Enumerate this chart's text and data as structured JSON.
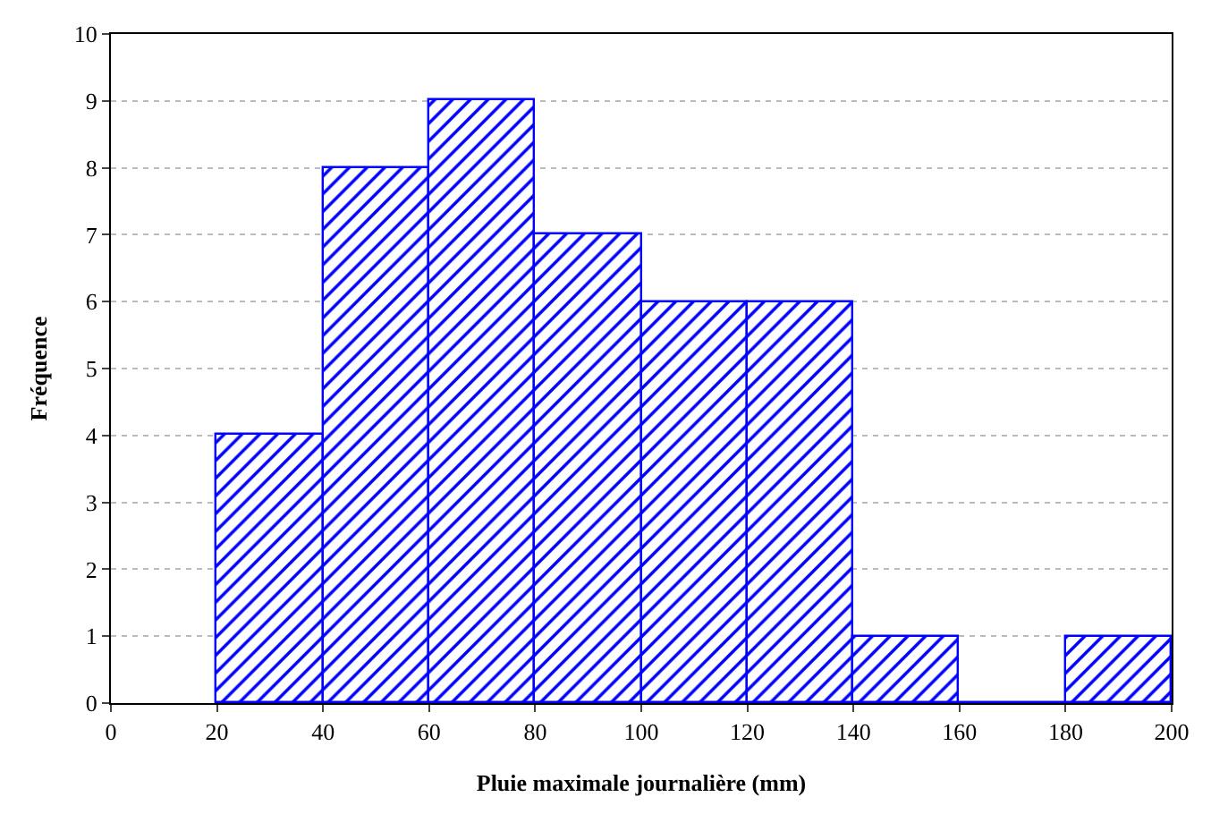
{
  "chart_data": {
    "type": "histogram",
    "xlabel": "Pluie maximale journalière (mm)",
    "ylabel": "Fréquence",
    "bins": [
      20,
      40,
      60,
      80,
      100,
      120,
      140,
      160,
      180,
      200
    ],
    "values": [
      4,
      8,
      9,
      7,
      6,
      6,
      1,
      0,
      1
    ],
    "color": "#0000ff",
    "xlim": [
      0,
      200
    ],
    "xticks": [
      0,
      20,
      40,
      60,
      80,
      100,
      120,
      140,
      160,
      180,
      200
    ],
    "ylim": [
      0,
      10
    ],
    "yticks": [
      0,
      1,
      2,
      3,
      4,
      5,
      6,
      7,
      8,
      9,
      10
    ],
    "grid": "y",
    "legend": false
  }
}
